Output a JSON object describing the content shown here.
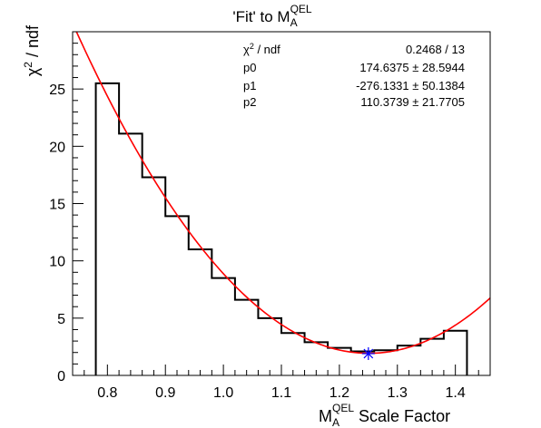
{
  "chart_data": {
    "type": "step-histogram-with-fit",
    "title": {
      "prefix": "'Fit' to M",
      "sub": "A",
      "sup": "QEL"
    },
    "xlabel": {
      "prefix": "M",
      "sub": "A",
      "sup": "QEL",
      "suffix": " Scale Factor"
    },
    "ylabel": {
      "base": "χ",
      "sup": "2",
      "suffix": " / ndf"
    },
    "xlim": [
      0.74,
      1.46
    ],
    "ylim": [
      0,
      30
    ],
    "x_ticks": [
      0.8,
      0.9,
      1.0,
      1.1,
      1.2,
      1.3,
      1.4
    ],
    "x_tick_labels": [
      "0.8",
      "0.9",
      "1.0",
      "1.1",
      "1.2",
      "1.3",
      "1.4"
    ],
    "y_ticks": [
      0,
      5,
      10,
      15,
      20,
      25
    ],
    "y_tick_labels": [
      "0",
      "5",
      "10",
      "15",
      "20",
      "25"
    ],
    "histogram": {
      "name": "data",
      "color": "#000000",
      "bin_edges": [
        0.78,
        0.82,
        0.86,
        0.9,
        0.94,
        0.98,
        1.02,
        1.06,
        1.1,
        1.14,
        1.18,
        1.22,
        1.26,
        1.3,
        1.34,
        1.38,
        1.42
      ],
      "values": [
        25.5,
        21.1,
        17.3,
        13.9,
        11.0,
        8.5,
        6.6,
        5.0,
        3.7,
        2.9,
        2.4,
        2.1,
        2.2,
        2.6,
        3.2,
        3.9
      ]
    },
    "fit": {
      "name": "fit",
      "color": "#ff0000",
      "function": "p0 + p1*x + p2*x^2",
      "p0": 174.6375,
      "p1": -276.1331,
      "p2": 110.3739
    },
    "minimum_marker": {
      "x": 1.25,
      "y": 1.9,
      "color": "#0000ff"
    },
    "stats_box": {
      "rows": [
        {
          "label_base": "χ",
          "label_sup": "2",
          "label_suffix": " / ndf",
          "value": "0.2468 / 13"
        },
        {
          "label": "p0",
          "value": "174.6375 ± 28.5944"
        },
        {
          "label": "p1",
          "value": "-276.1331 ± 50.1384"
        },
        {
          "label": "p2",
          "value": "110.3739 ± 21.7705"
        }
      ]
    },
    "grid": false,
    "legend": "none"
  }
}
